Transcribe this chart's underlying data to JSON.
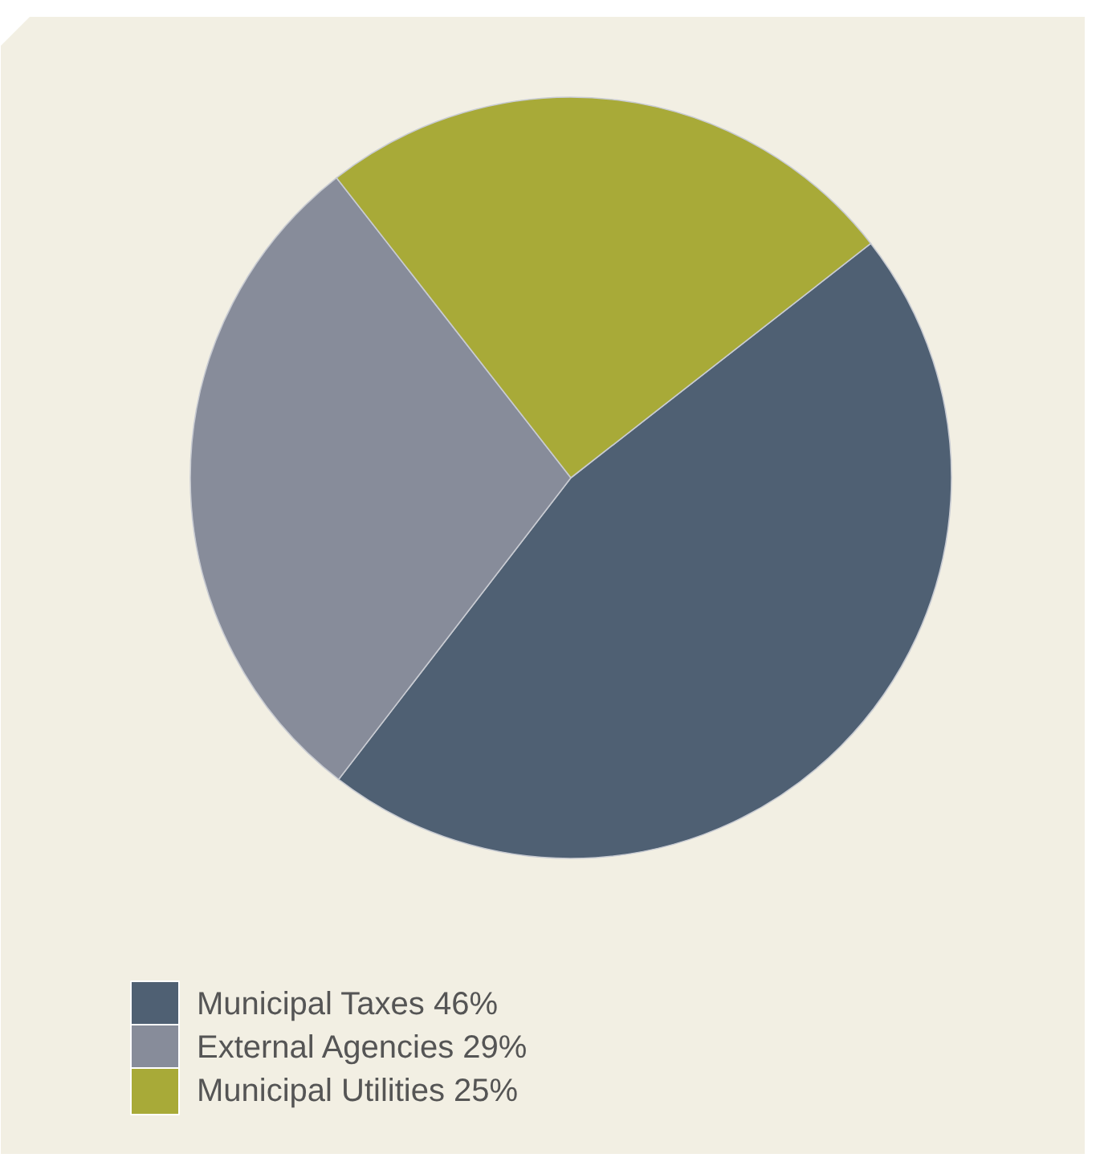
{
  "chart_data": {
    "type": "pie",
    "categories": [
      "Municipal Taxes",
      "External Agencies",
      "Municipal Utilities"
    ],
    "values": [
      46,
      29,
      25
    ],
    "value_labels": [
      "46%",
      "29%",
      "25%"
    ],
    "colors": [
      "#4f6073",
      "#878c9a",
      "#a8aa38"
    ],
    "legend": "bottom left"
  }
}
